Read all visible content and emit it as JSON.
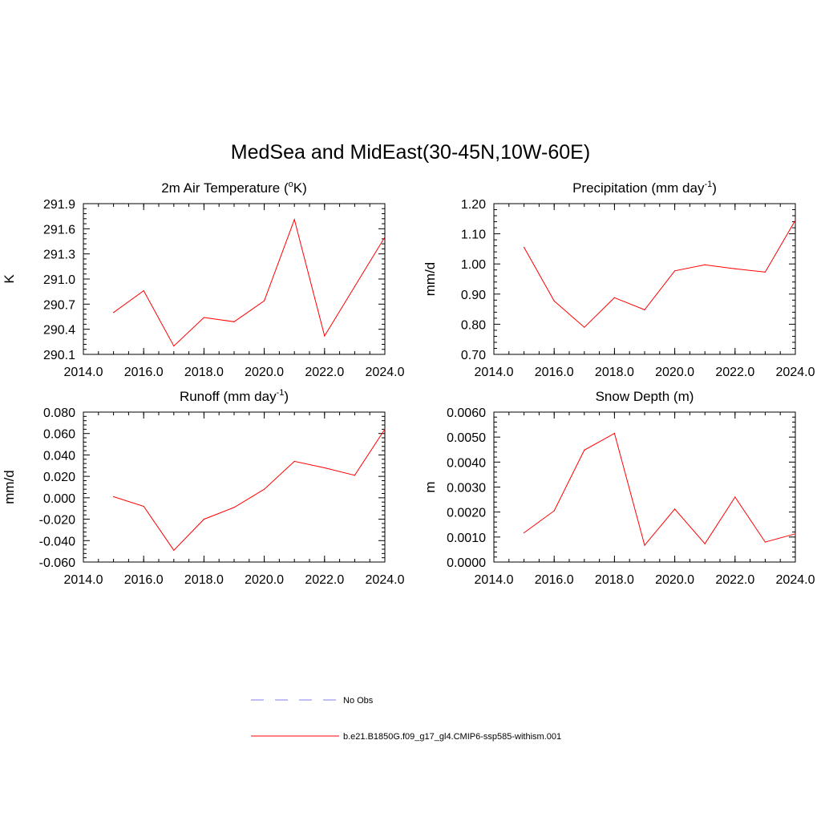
{
  "title": "MedSea and MidEast(30-45N,10W-60E)",
  "legend": {
    "items": [
      {
        "label": "No Obs",
        "color": "#9999ee",
        "style": "dashed"
      },
      {
        "label": "b.e21.B1850G.f09_g17_gl4.CMIP6-ssp585-withism.001",
        "color": "#ff0000",
        "style": "solid"
      }
    ]
  },
  "chart_data": [
    {
      "type": "line",
      "title": "2m Air Temperature (",
      "title_sup": "o",
      "title_suffix": "K)",
      "ylabel": "K",
      "xlim": [
        2014,
        2024
      ],
      "ylim": [
        290.1,
        291.9
      ],
      "xticks": [
        2014.0,
        2016.0,
        2018.0,
        2020.0,
        2022.0,
        2024.0
      ],
      "xtick_labels": [
        "2014.0",
        "2016.0",
        "2018.0",
        "2020.0",
        "2022.0",
        "2024.0"
      ],
      "yticks": [
        290.1,
        290.4,
        290.7,
        291.0,
        291.3,
        291.6,
        291.9
      ],
      "ytick_labels": [
        "290.1",
        "290.4",
        "290.7",
        "291.0",
        "291.3",
        "291.6",
        "291.9"
      ],
      "x": [
        2015,
        2016,
        2017,
        2018,
        2019,
        2020,
        2021,
        2022,
        2023,
        2024
      ],
      "series": [
        {
          "name": "b.e21.B1850G.f09_g17_gl4.CMIP6-ssp585-withism.001",
          "color": "#ff0000",
          "values": [
            290.6,
            290.86,
            290.2,
            290.54,
            290.49,
            290.74,
            291.71,
            290.32,
            290.91,
            291.5
          ]
        }
      ]
    },
    {
      "type": "line",
      "title": "Precipitation (mm day",
      "title_sup": "-1",
      "title_suffix": ")",
      "ylabel": "mm/d",
      "xlim": [
        2014,
        2024
      ],
      "ylim": [
        0.7,
        1.2
      ],
      "xticks": [
        2014.0,
        2016.0,
        2018.0,
        2020.0,
        2022.0,
        2024.0
      ],
      "xtick_labels": [
        "2014.0",
        "2016.0",
        "2018.0",
        "2020.0",
        "2022.0",
        "2024.0"
      ],
      "yticks": [
        0.7,
        0.8,
        0.9,
        1.0,
        1.1,
        1.2
      ],
      "ytick_labels": [
        "0.70",
        "0.80",
        "0.90",
        "1.00",
        "1.10",
        "1.20"
      ],
      "x": [
        2015,
        2016,
        2017,
        2018,
        2019,
        2020,
        2021,
        2022,
        2023,
        2024
      ],
      "series": [
        {
          "name": "b.e21.B1850G.f09_g17_gl4.CMIP6-ssp585-withism.001",
          "color": "#ff0000",
          "values": [
            1.055,
            0.877,
            0.79,
            0.888,
            0.848,
            0.977,
            0.997,
            0.984,
            0.973,
            1.145
          ]
        }
      ]
    },
    {
      "type": "line",
      "title": "Runoff (mm day",
      "title_sup": "-1",
      "title_suffix": ")",
      "ylabel": "mm/d",
      "xlim": [
        2014,
        2024
      ],
      "ylim": [
        -0.06,
        0.08
      ],
      "xticks": [
        2014.0,
        2016.0,
        2018.0,
        2020.0,
        2022.0,
        2024.0
      ],
      "xtick_labels": [
        "2014.0",
        "2016.0",
        "2018.0",
        "2020.0",
        "2022.0",
        "2024.0"
      ],
      "yticks": [
        -0.06,
        -0.04,
        -0.02,
        0.0,
        0.02,
        0.04,
        0.06,
        0.08
      ],
      "ytick_labels": [
        "-0.060",
        "-0.040",
        "-0.020",
        "0.000",
        "0.020",
        "0.040",
        "0.060",
        "0.080"
      ],
      "x": [
        2015,
        2016,
        2017,
        2018,
        2019,
        2020,
        2021,
        2022,
        2023,
        2024
      ],
      "series": [
        {
          "name": "b.e21.B1850G.f09_g17_gl4.CMIP6-ssp585-withism.001",
          "color": "#ff0000",
          "values": [
            0.001,
            -0.008,
            -0.049,
            -0.02,
            -0.009,
            0.008,
            0.034,
            0.028,
            0.021,
            0.064
          ]
        }
      ]
    },
    {
      "type": "line",
      "title": "Snow Depth (m)",
      "title_sup": "",
      "title_suffix": "",
      "ylabel": "m",
      "xlim": [
        2014,
        2024
      ],
      "ylim": [
        0.0,
        0.006
      ],
      "xticks": [
        2014.0,
        2016.0,
        2018.0,
        2020.0,
        2022.0,
        2024.0
      ],
      "xtick_labels": [
        "2014.0",
        "2016.0",
        "2018.0",
        "2020.0",
        "2022.0",
        "2024.0"
      ],
      "yticks": [
        0.0,
        0.001,
        0.002,
        0.003,
        0.004,
        0.005,
        0.006
      ],
      "ytick_labels": [
        "0.0000",
        "0.0010",
        "0.0020",
        "0.0030",
        "0.0040",
        "0.0050",
        "0.0060"
      ],
      "x": [
        2015,
        2016,
        2017,
        2018,
        2019,
        2020,
        2021,
        2022,
        2023,
        2024
      ],
      "series": [
        {
          "name": "b.e21.B1850G.f09_g17_gl4.CMIP6-ssp585-withism.001",
          "color": "#ff0000",
          "values": [
            0.00117,
            0.00205,
            0.00448,
            0.00515,
            0.00067,
            0.00212,
            0.00073,
            0.0026,
            0.0008,
            0.00113
          ]
        }
      ]
    }
  ]
}
